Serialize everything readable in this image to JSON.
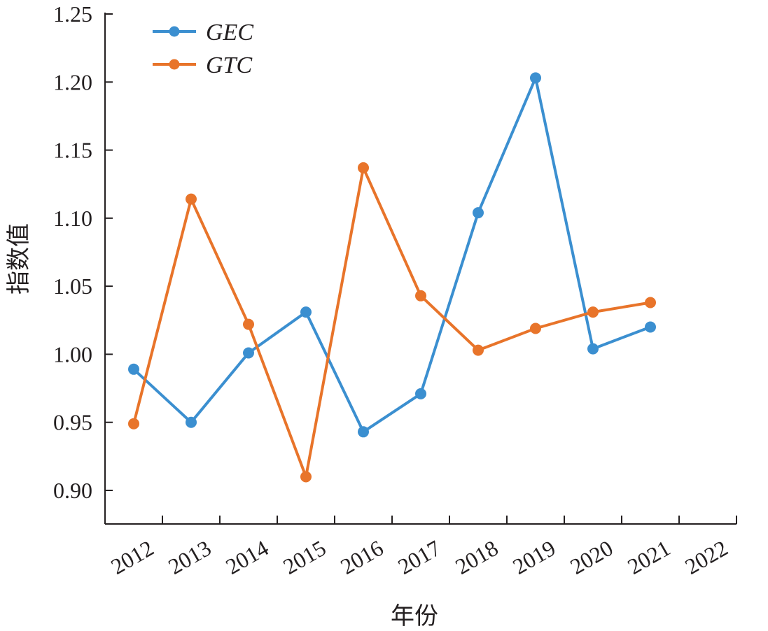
{
  "chart_data": {
    "type": "line",
    "title": "",
    "xlabel": "年份",
    "ylabel": "指数值",
    "x_ticks": [
      "2012",
      "2013",
      "2014",
      "2015",
      "2016",
      "2017",
      "2018",
      "2019",
      "2020",
      "2021",
      "2022"
    ],
    "y_ticks": [
      "0.90",
      "0.95",
      "1.00",
      "1.05",
      "1.10",
      "1.15",
      "1.20",
      "1.25"
    ],
    "ylim": [
      0.885,
      1.25
    ],
    "categories": [
      "2012-2013",
      "2013-2014",
      "2014-2015",
      "2015-2016",
      "2016-2017",
      "2017-2018",
      "2018-2019",
      "2019-2020",
      "2020-2021",
      "2021-2022"
    ],
    "series": [
      {
        "name": "GEC",
        "color": "#3b8fd0",
        "values": [
          0.989,
          0.95,
          1.001,
          1.031,
          0.943,
          0.971,
          1.104,
          1.203,
          1.004,
          1.02
        ]
      },
      {
        "name": "GTC",
        "color": "#e8742a",
        "values": [
          0.949,
          1.114,
          1.022,
          0.91,
          1.137,
          1.043,
          1.003,
          1.019,
          1.031,
          1.038
        ]
      }
    ],
    "legend": {
      "position": "top-left"
    },
    "grid": false
  }
}
